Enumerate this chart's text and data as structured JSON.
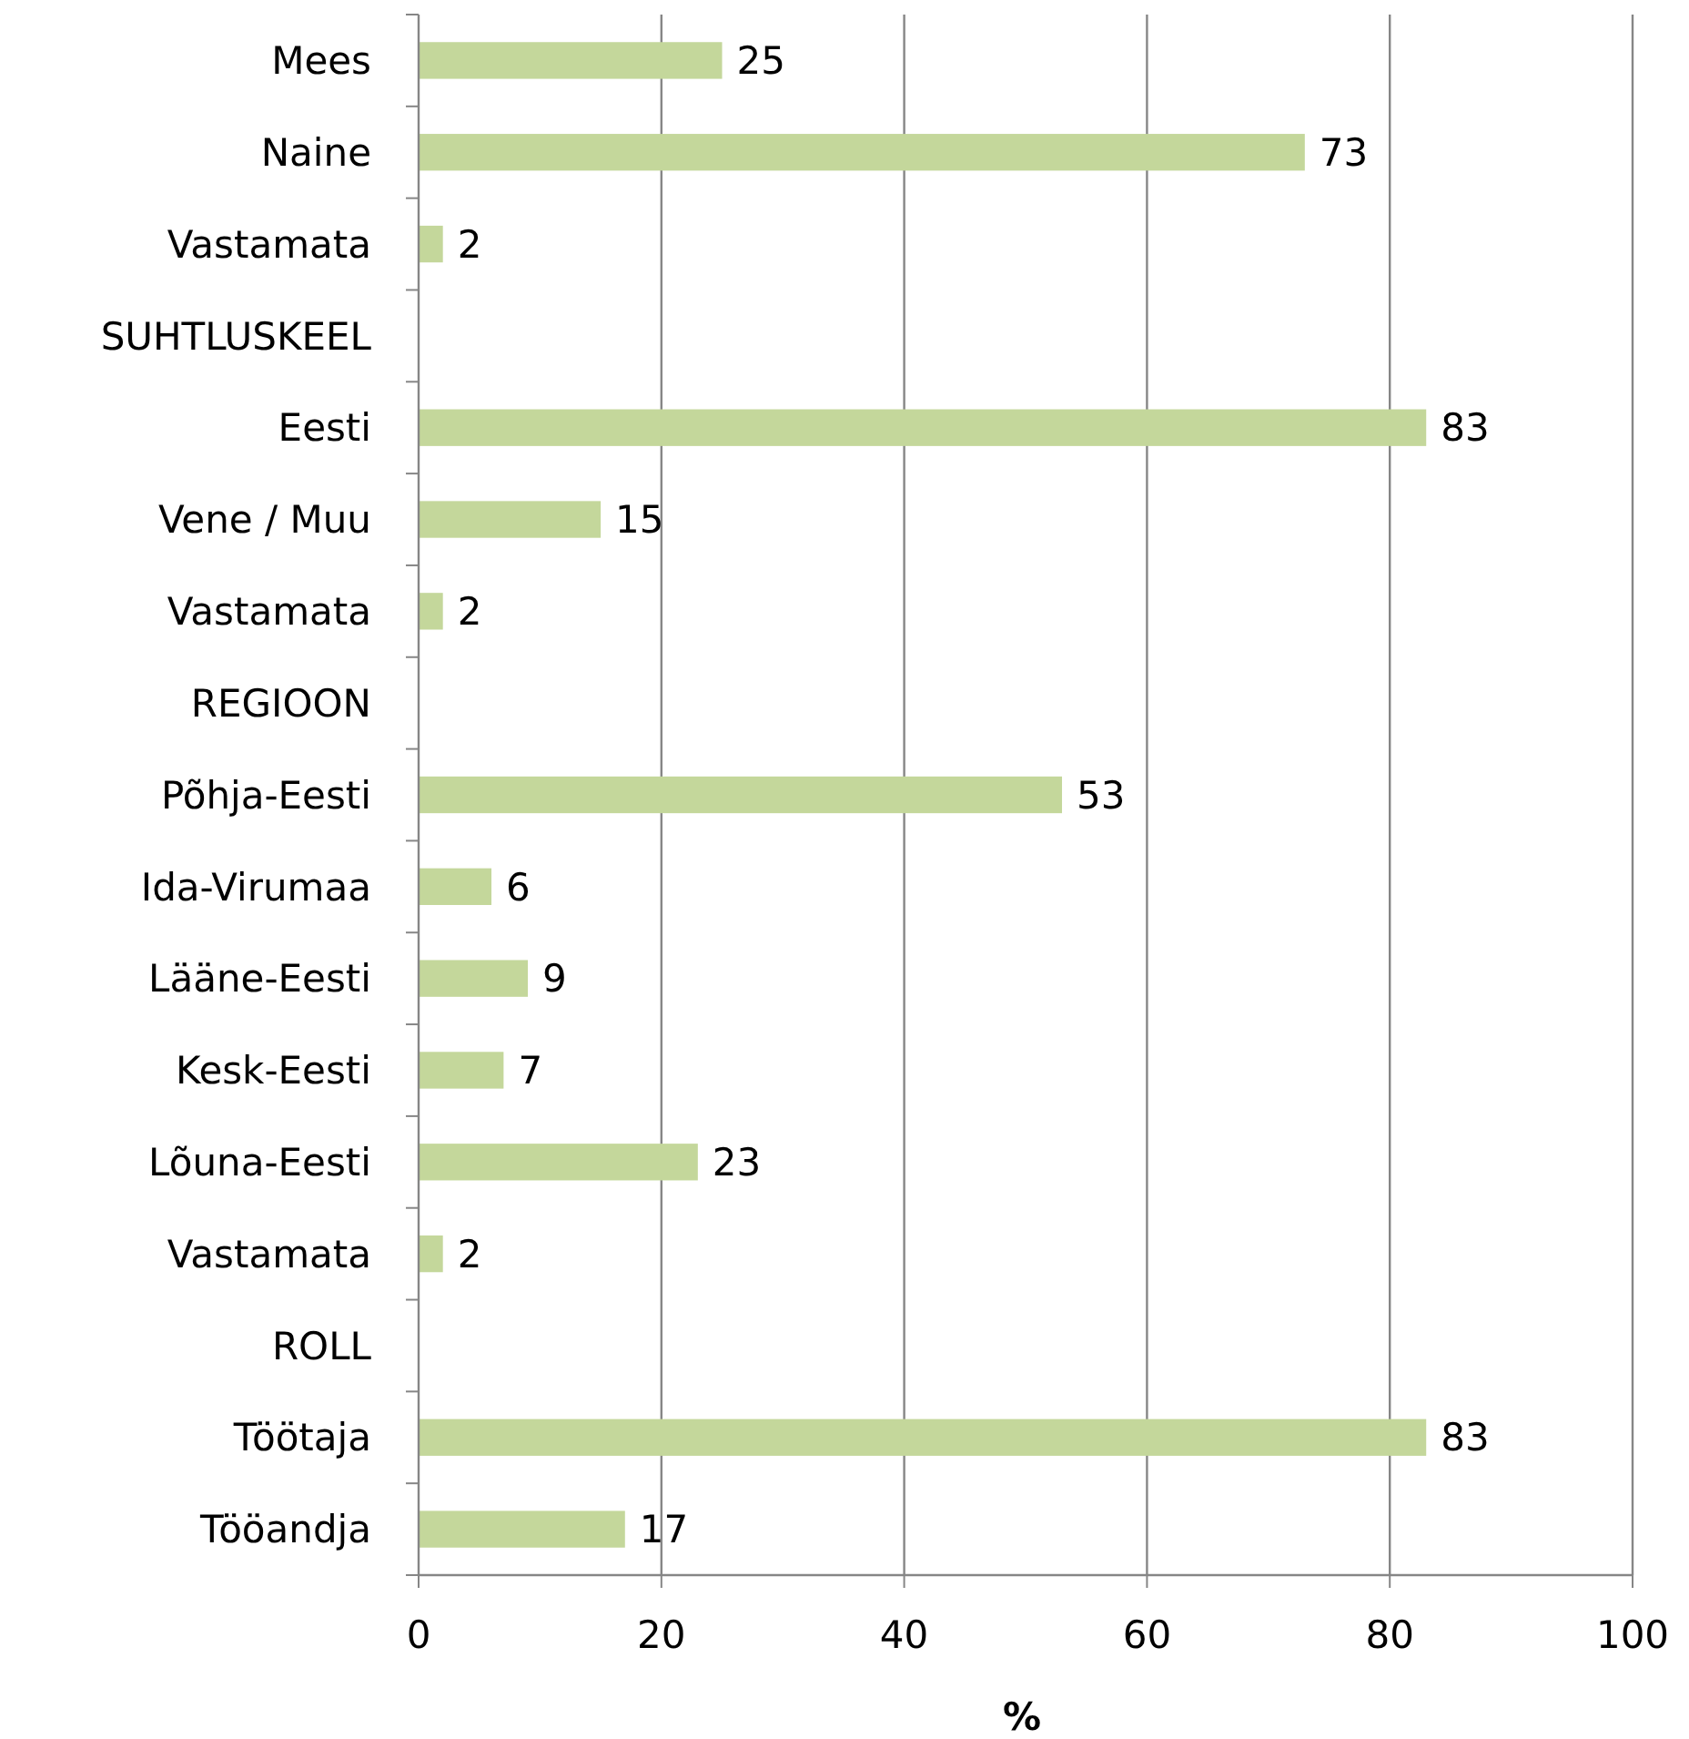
{
  "chart_data": {
    "type": "bar",
    "orientation": "horizontal",
    "xlabel": "%",
    "categories": [
      "Mees",
      "Naine",
      "Vastamata",
      "SUHTLUSKEEL",
      "Eesti",
      "Vene / Muu",
      "Vastamata",
      "REGIOON",
      "Põhja-Eesti",
      "Ida-Virumaa",
      "Lääne-Eesti",
      "Kesk-Eesti",
      "Lõuna-Eesti",
      "Vastamata",
      "ROLL",
      "Töötaja",
      "Tööandja"
    ],
    "values": [
      25,
      73,
      2,
      null,
      83,
      15,
      2,
      null,
      53,
      6,
      9,
      7,
      23,
      2,
      null,
      83,
      17
    ],
    "color": "#c4d79b",
    "xlim": [
      0,
      100
    ],
    "xticks": [
      0,
      20,
      40,
      60,
      80,
      100
    ],
    "grid": "x",
    "data_labels": true
  }
}
